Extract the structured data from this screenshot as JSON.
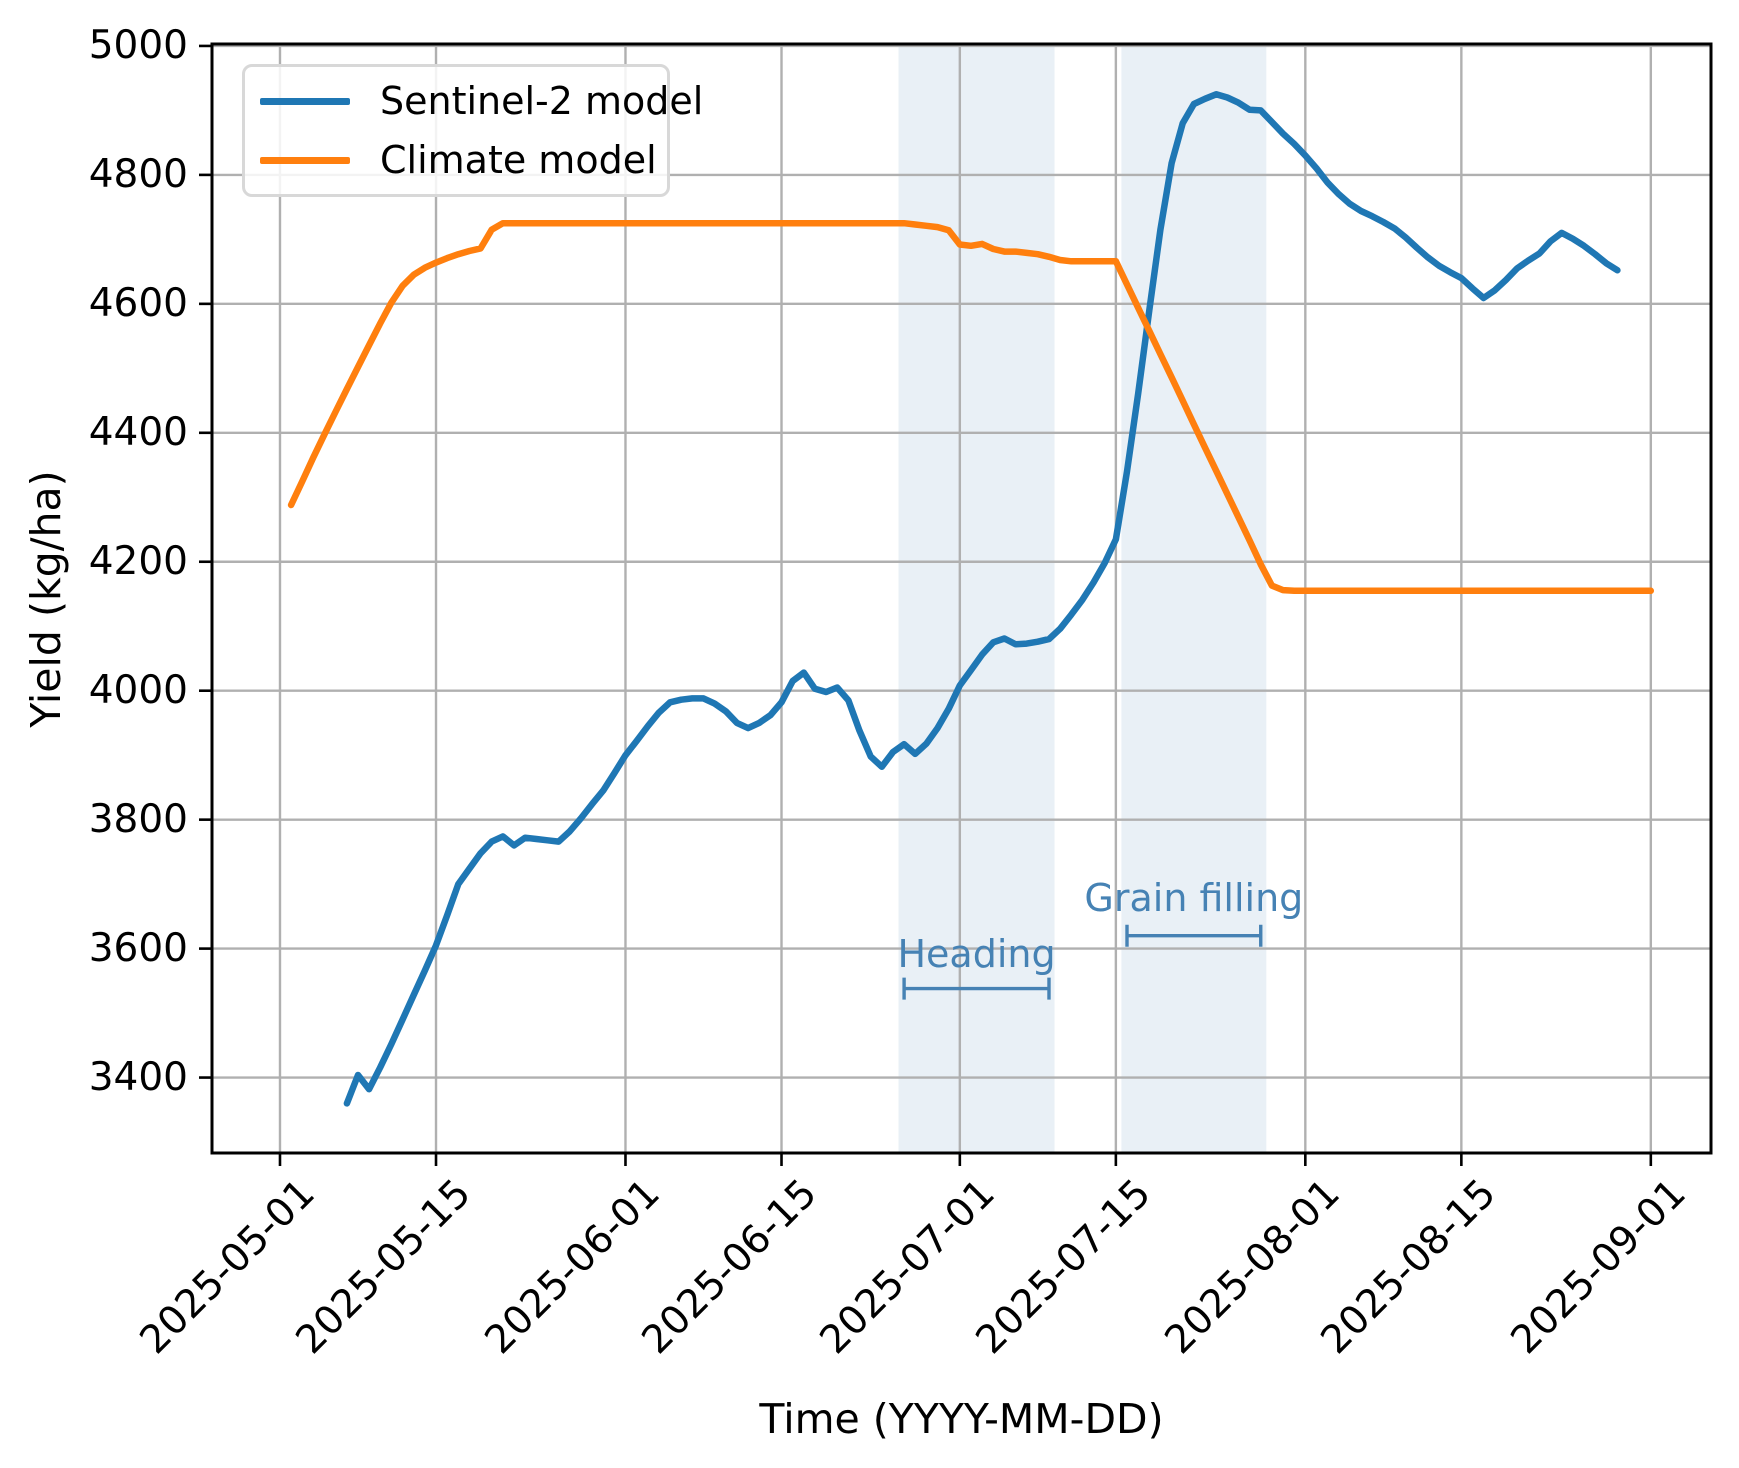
{
  "chart_data": {
    "type": "line",
    "title": "",
    "xlabel": "Time (YYYY-MM-DD)",
    "ylabel": "Yield (kg/ha)",
    "grid": true,
    "x_ticks": [
      "2025-05-01",
      "2025-05-15",
      "2025-06-01",
      "2025-06-15",
      "2025-07-01",
      "2025-07-15",
      "2025-08-01",
      "2025-08-15",
      "2025-09-01"
    ],
    "y_ticks": [
      3400,
      3600,
      3800,
      4000,
      4200,
      4400,
      4600,
      4800,
      5000
    ],
    "ylim": [
      3283,
      5003
    ],
    "xlim_days": [
      -6.1,
      128.4
    ],
    "grid_color": "#b0b0b0",
    "legend": {
      "position": "upper left",
      "entries": [
        {
          "label": "Sentinel-2 model",
          "color": "#1f77b4"
        },
        {
          "label": "Climate model",
          "color": "#ff7f0e"
        }
      ]
    },
    "series": [
      {
        "name": "Sentinel-2 model",
        "color": "#1f77b4",
        "points": [
          [
            "2025-05-07",
            3360
          ],
          [
            "2025-05-08",
            3404
          ],
          [
            "2025-05-09",
            3382
          ],
          [
            "2025-05-10",
            3416
          ],
          [
            "2025-05-11",
            3452
          ],
          [
            "2025-05-12",
            3490
          ],
          [
            "2025-05-13",
            3528
          ],
          [
            "2025-05-14",
            3566
          ],
          [
            "2025-05-15",
            3605
          ],
          [
            "2025-05-16",
            3652
          ],
          [
            "2025-05-17",
            3700
          ],
          [
            "2025-05-18",
            3724
          ],
          [
            "2025-05-19",
            3748
          ],
          [
            "2025-05-20",
            3766
          ],
          [
            "2025-05-21",
            3774
          ],
          [
            "2025-05-22",
            3760
          ],
          [
            "2025-05-23",
            3772
          ],
          [
            "2025-05-24",
            3770
          ],
          [
            "2025-05-25",
            3768
          ],
          [
            "2025-05-26",
            3766
          ],
          [
            "2025-05-27",
            3782
          ],
          [
            "2025-05-28",
            3802
          ],
          [
            "2025-05-29",
            3824
          ],
          [
            "2025-05-30",
            3845
          ],
          [
            "2025-05-31",
            3872
          ],
          [
            "2025-06-01",
            3900
          ],
          [
            "2025-06-02",
            3922
          ],
          [
            "2025-06-03",
            3945
          ],
          [
            "2025-06-04",
            3966
          ],
          [
            "2025-06-05",
            3982
          ],
          [
            "2025-06-06",
            3986
          ],
          [
            "2025-06-07",
            3988
          ],
          [
            "2025-06-08",
            3988
          ],
          [
            "2025-06-09",
            3980
          ],
          [
            "2025-06-10",
            3968
          ],
          [
            "2025-06-11",
            3950
          ],
          [
            "2025-06-12",
            3942
          ],
          [
            "2025-06-13",
            3950
          ],
          [
            "2025-06-14",
            3962
          ],
          [
            "2025-06-15",
            3982
          ],
          [
            "2025-06-16",
            4015
          ],
          [
            "2025-06-17",
            4028
          ],
          [
            "2025-06-18",
            4003
          ],
          [
            "2025-06-19",
            3998
          ],
          [
            "2025-06-20",
            4005
          ],
          [
            "2025-06-21",
            3985
          ],
          [
            "2025-06-22",
            3938
          ],
          [
            "2025-06-23",
            3898
          ],
          [
            "2025-06-24",
            3882
          ],
          [
            "2025-06-25",
            3905
          ],
          [
            "2025-06-26",
            3917
          ],
          [
            "2025-06-27",
            3902
          ],
          [
            "2025-06-28",
            3918
          ],
          [
            "2025-06-29",
            3942
          ],
          [
            "2025-06-30",
            3972
          ],
          [
            "2025-07-01",
            4008
          ],
          [
            "2025-07-02",
            4032
          ],
          [
            "2025-07-03",
            4056
          ],
          [
            "2025-07-04",
            4075
          ],
          [
            "2025-07-05",
            4081
          ],
          [
            "2025-07-06",
            4072
          ],
          [
            "2025-07-07",
            4073
          ],
          [
            "2025-07-08",
            4076
          ],
          [
            "2025-07-09",
            4080
          ],
          [
            "2025-07-10",
            4096
          ],
          [
            "2025-07-11",
            4118
          ],
          [
            "2025-07-12",
            4141
          ],
          [
            "2025-07-13",
            4168
          ],
          [
            "2025-07-14",
            4198
          ],
          [
            "2025-07-15",
            4235
          ],
          [
            "2025-07-16",
            4340
          ],
          [
            "2025-07-17",
            4460
          ],
          [
            "2025-07-18",
            4590
          ],
          [
            "2025-07-19",
            4715
          ],
          [
            "2025-07-20",
            4818
          ],
          [
            "2025-07-21",
            4880
          ],
          [
            "2025-07-22",
            4910
          ],
          [
            "2025-07-23",
            4918
          ],
          [
            "2025-07-24",
            4925
          ],
          [
            "2025-07-25",
            4920
          ],
          [
            "2025-07-26",
            4912
          ],
          [
            "2025-07-27",
            4901
          ],
          [
            "2025-07-28",
            4900
          ],
          [
            "2025-07-29",
            4882
          ],
          [
            "2025-07-30",
            4864
          ],
          [
            "2025-07-31",
            4848
          ],
          [
            "2025-08-01",
            4830
          ],
          [
            "2025-08-02",
            4810
          ],
          [
            "2025-08-03",
            4788
          ],
          [
            "2025-08-04",
            4770
          ],
          [
            "2025-08-05",
            4755
          ],
          [
            "2025-08-06",
            4744
          ],
          [
            "2025-08-07",
            4736
          ],
          [
            "2025-08-08",
            4727
          ],
          [
            "2025-08-09",
            4717
          ],
          [
            "2025-08-10",
            4703
          ],
          [
            "2025-08-11",
            4687
          ],
          [
            "2025-08-12",
            4672
          ],
          [
            "2025-08-13",
            4659
          ],
          [
            "2025-08-14",
            4649
          ],
          [
            "2025-08-15",
            4640
          ],
          [
            "2025-08-16",
            4624
          ],
          [
            "2025-08-17",
            4609
          ],
          [
            "2025-08-18",
            4621
          ],
          [
            "2025-08-19",
            4637
          ],
          [
            "2025-08-20",
            4655
          ],
          [
            "2025-08-21",
            4667
          ],
          [
            "2025-08-22",
            4678
          ],
          [
            "2025-08-23",
            4697
          ],
          [
            "2025-08-24",
            4710
          ],
          [
            "2025-08-25",
            4701
          ],
          [
            "2025-08-26",
            4690
          ],
          [
            "2025-08-27",
            4677
          ],
          [
            "2025-08-28",
            4663
          ],
          [
            "2025-08-29",
            4652
          ]
        ]
      },
      {
        "name": "Climate model",
        "color": "#ff7f0e",
        "points": [
          [
            "2025-05-02",
            4288
          ],
          [
            "2025-05-03",
            4325
          ],
          [
            "2025-05-04",
            4362
          ],
          [
            "2025-05-05",
            4398
          ],
          [
            "2025-05-06",
            4433
          ],
          [
            "2025-05-07",
            4468
          ],
          [
            "2025-05-08",
            4502
          ],
          [
            "2025-05-09",
            4536
          ],
          [
            "2025-05-10",
            4570
          ],
          [
            "2025-05-11",
            4602
          ],
          [
            "2025-05-12",
            4628
          ],
          [
            "2025-05-13",
            4645
          ],
          [
            "2025-05-14",
            4656
          ],
          [
            "2025-05-15",
            4664
          ],
          [
            "2025-05-16",
            4671
          ],
          [
            "2025-05-17",
            4677
          ],
          [
            "2025-05-18",
            4682
          ],
          [
            "2025-05-19",
            4686
          ],
          [
            "2025-05-20",
            4715
          ],
          [
            "2025-05-21",
            4725
          ],
          [
            "2025-05-26",
            4725
          ],
          [
            "2025-06-01",
            4725
          ],
          [
            "2025-06-08",
            4725
          ],
          [
            "2025-06-15",
            4725
          ],
          [
            "2025-06-22",
            4725
          ],
          [
            "2025-06-26",
            4725
          ],
          [
            "2025-06-27",
            4723
          ],
          [
            "2025-06-28",
            4721
          ],
          [
            "2025-06-29",
            4719
          ],
          [
            "2025-06-30",
            4714
          ],
          [
            "2025-07-01",
            4692
          ],
          [
            "2025-07-02",
            4690
          ],
          [
            "2025-07-03",
            4693
          ],
          [
            "2025-07-04",
            4685
          ],
          [
            "2025-07-05",
            4681
          ],
          [
            "2025-07-06",
            4681
          ],
          [
            "2025-07-07",
            4679
          ],
          [
            "2025-07-08",
            4677
          ],
          [
            "2025-07-09",
            4673
          ],
          [
            "2025-07-10",
            4668
          ],
          [
            "2025-07-11",
            4666
          ],
          [
            "2025-07-12",
            4666
          ],
          [
            "2025-07-13",
            4666
          ],
          [
            "2025-07-14",
            4666
          ],
          [
            "2025-07-15",
            4666
          ],
          [
            "2025-07-16",
            4630
          ],
          [
            "2025-07-17",
            4594
          ],
          [
            "2025-07-18",
            4558
          ],
          [
            "2025-07-19",
            4522
          ],
          [
            "2025-07-20",
            4486
          ],
          [
            "2025-07-21",
            4450
          ],
          [
            "2025-07-22",
            4413
          ],
          [
            "2025-07-23",
            4377
          ],
          [
            "2025-07-24",
            4341
          ],
          [
            "2025-07-25",
            4305
          ],
          [
            "2025-07-26",
            4269
          ],
          [
            "2025-07-27",
            4233
          ],
          [
            "2025-07-28",
            4196
          ],
          [
            "2025-07-29",
            4163
          ],
          [
            "2025-07-30",
            4156
          ],
          [
            "2025-07-31",
            4155
          ],
          [
            "2025-08-05",
            4155
          ],
          [
            "2025-08-10",
            4155
          ],
          [
            "2025-08-16",
            4155
          ],
          [
            "2025-08-22",
            4155
          ],
          [
            "2025-08-28",
            4155
          ],
          [
            "2025-09-01",
            4155
          ]
        ]
      }
    ],
    "annotations": [
      {
        "label": "Heading",
        "band": [
          "2025-06-25T12:00",
          "2025-07-09T12:00"
        ],
        "bracket": [
          "2025-06-26",
          "2025-07-09"
        ],
        "bracket_y": 3538,
        "label_y": 3592,
        "color": "#4682b4",
        "band_color": "rgba(70,130,180,0.12)"
      },
      {
        "label": "Grain filling",
        "band": [
          "2025-07-15T12:00",
          "2025-07-28T12:00"
        ],
        "bracket": [
          "2025-07-16",
          "2025-07-28"
        ],
        "bracket_y": 3620,
        "label_y": 3678,
        "color": "#4682b4",
        "band_color": "rgba(70,130,180,0.12)"
      }
    ]
  }
}
